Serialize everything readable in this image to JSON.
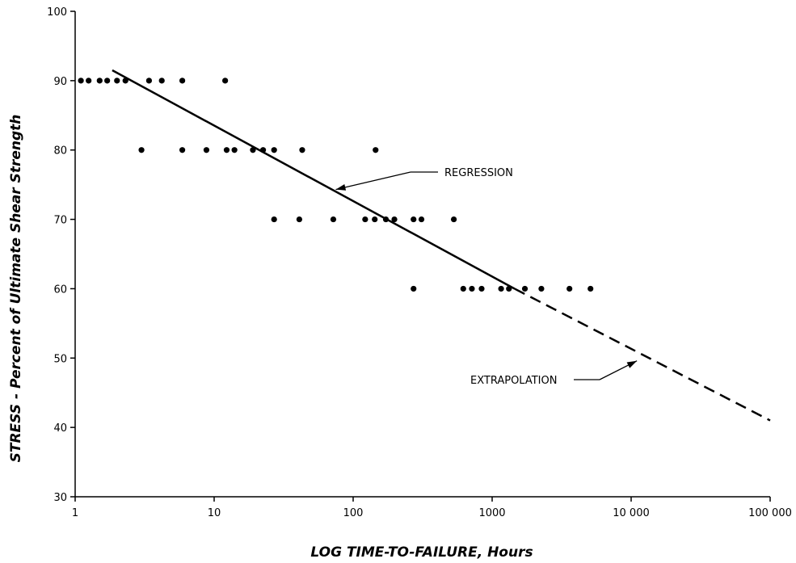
{
  "chart_data": {
    "type": "scatter",
    "title": "",
    "xlabel": "LOG TIME-TO-FAILURE, Hours",
    "ylabel": "STRESS - Percent of Ultimate Shear Strength",
    "x_scale": "log",
    "xlim": [
      1,
      100000
    ],
    "ylim": [
      30,
      100
    ],
    "x_ticks": [
      1,
      10,
      100,
      1000,
      10000,
      100000
    ],
    "x_tick_labels": [
      "1",
      "10",
      "100",
      "1000",
      "10 000",
      "100 000"
    ],
    "y_ticks": [
      30,
      40,
      50,
      60,
      70,
      80,
      90,
      100
    ],
    "y_tick_labels": [
      "30",
      "40",
      "50",
      "60",
      "70",
      "80",
      "90",
      "100"
    ],
    "grid": false,
    "points": [
      {
        "x": 1.1,
        "y": 90
      },
      {
        "x": 1.25,
        "y": 90
      },
      {
        "x": 1.5,
        "y": 90
      },
      {
        "x": 1.7,
        "y": 90
      },
      {
        "x": 2.0,
        "y": 90
      },
      {
        "x": 2.3,
        "y": 90
      },
      {
        "x": 3.4,
        "y": 90
      },
      {
        "x": 4.2,
        "y": 90
      },
      {
        "x": 5.9,
        "y": 90
      },
      {
        "x": 12,
        "y": 90
      },
      {
        "x": 3.0,
        "y": 80
      },
      {
        "x": 5.9,
        "y": 80
      },
      {
        "x": 8.8,
        "y": 80
      },
      {
        "x": 12.3,
        "y": 80
      },
      {
        "x": 14,
        "y": 80
      },
      {
        "x": 19,
        "y": 80
      },
      {
        "x": 22.5,
        "y": 80
      },
      {
        "x": 27,
        "y": 80
      },
      {
        "x": 43,
        "y": 80
      },
      {
        "x": 145,
        "y": 80
      },
      {
        "x": 27,
        "y": 70
      },
      {
        "x": 41,
        "y": 70
      },
      {
        "x": 72,
        "y": 70
      },
      {
        "x": 122,
        "y": 70
      },
      {
        "x": 143,
        "y": 70
      },
      {
        "x": 172,
        "y": 70
      },
      {
        "x": 198,
        "y": 70
      },
      {
        "x": 272,
        "y": 70
      },
      {
        "x": 310,
        "y": 70
      },
      {
        "x": 530,
        "y": 70
      },
      {
        "x": 272,
        "y": 60
      },
      {
        "x": 620,
        "y": 60
      },
      {
        "x": 715,
        "y": 60
      },
      {
        "x": 840,
        "y": 60
      },
      {
        "x": 1160,
        "y": 60
      },
      {
        "x": 1320,
        "y": 60
      },
      {
        "x": 1720,
        "y": 60
      },
      {
        "x": 2260,
        "y": 60
      },
      {
        "x": 3600,
        "y": 60
      },
      {
        "x": 5100,
        "y": 60
      }
    ],
    "regression": {
      "label": "REGRESSION",
      "style": "solid",
      "from": {
        "x": 1.85,
        "y": 91.5
      },
      "to": {
        "x": 1450,
        "y": 60
      },
      "label_anchor": {
        "x": 75,
        "y": 74.3
      }
    },
    "extrapolation": {
      "label": "EXTRAPOLATION",
      "style": "dashed",
      "from": {
        "x": 1450,
        "y": 60
      },
      "to": {
        "x": 100000,
        "y": 41
      },
      "label_anchor": {
        "x": 11000,
        "y": 49.6
      }
    }
  }
}
